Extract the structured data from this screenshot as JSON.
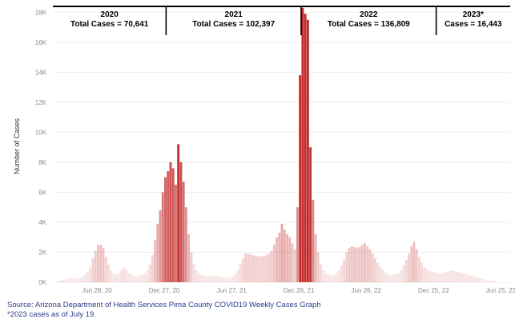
{
  "chart_data": {
    "type": "bar",
    "ylabel": "Number of Cases",
    "ylim": [
      0,
      18500
    ],
    "yticks": [
      0,
      2000,
      4000,
      6000,
      8000,
      10000,
      12000,
      14000,
      16000,
      18000
    ],
    "ytick_labels": [
      "0K",
      "2K",
      "4K",
      "6K",
      "8K",
      "10K",
      "12K",
      "14K",
      "16K",
      "18K"
    ],
    "x_start": "2020-03-01",
    "x_end": "2023-07-20",
    "xticks": [
      {
        "date": "2020-06-28",
        "label": "Jun 28, 20"
      },
      {
        "date": "2020-12-27",
        "label": "Dec 27, 20"
      },
      {
        "date": "2021-06-27",
        "label": "Jun 27, 21"
      },
      {
        "date": "2021-12-26",
        "label": "Dec 26, 21"
      },
      {
        "date": "2022-06-26",
        "label": "Jun 26, 22"
      },
      {
        "date": "2022-12-25",
        "label": "Dec 25, 22"
      },
      {
        "date": "2023-06-25",
        "label": "Jun 25, 23"
      }
    ],
    "year_panels": [
      {
        "year": "2020",
        "total": "Total Cases = 70,641",
        "start": "2020-03-01",
        "end": "2021-01-01"
      },
      {
        "year": "2021",
        "total": "Total Cases = 102,397",
        "start": "2021-01-01",
        "end": "2022-01-01"
      },
      {
        "year": "2022",
        "total": "Total Cases = 136,809",
        "start": "2022-01-01",
        "end": "2023-01-01"
      },
      {
        "year": "2023*",
        "total": "Cases = 16,443",
        "start": "2023-01-01",
        "end": "2023-07-20"
      }
    ],
    "series": [
      {
        "week_start": "2020-03-08",
        "interval_days": 7,
        "values": [
          50,
          100,
          150,
          200,
          250,
          300,
          300,
          250,
          250,
          300,
          400,
          500,
          700,
          1000,
          1600,
          2100,
          2500,
          2500,
          2300,
          1700,
          1200,
          800,
          600,
          500,
          600,
          800,
          1000,
          800,
          600,
          500,
          400,
          400,
          450,
          500,
          600,
          800,
          1200,
          1800,
          2800,
          3900,
          4800,
          6000,
          7000,
          7400,
          8000,
          7600,
          6500,
          9200,
          8000,
          6700,
          5000,
          3200,
          2000,
          1200,
          800,
          600,
          500,
          450,
          400,
          400,
          420,
          450,
          420,
          380,
          350,
          300,
          280,
          300,
          400,
          550,
          800,
          1200,
          1600,
          1900,
          1900,
          1850,
          1800,
          1750,
          1750,
          1700,
          1750,
          1800,
          1900,
          2100,
          2500,
          3000,
          3300,
          3900,
          3500,
          3200,
          3000,
          2600,
          2200,
          5000,
          13800,
          18300,
          17900,
          17500,
          9000,
          5500,
          3200,
          2000,
          1200,
          800,
          600,
          500,
          450,
          500,
          600,
          800,
          1100,
          1500,
          2000,
          2300,
          2400,
          2350,
          2300,
          2350,
          2500,
          2600,
          2400,
          2200,
          1900,
          1600,
          1300,
          1000,
          800,
          650,
          550,
          500,
          500,
          550,
          600,
          800,
          1100,
          1500,
          1900,
          2400,
          2700,
          2200,
          1700,
          1300,
          1000,
          850,
          750,
          700,
          650,
          600,
          600,
          600,
          650,
          700,
          750,
          800,
          750,
          700,
          650,
          600,
          550,
          500,
          450,
          400,
          350,
          300,
          250,
          200,
          150,
          120,
          100,
          80
        ]
      }
    ]
  },
  "source_lines": [
    "Source: Arizona Department of Health Services Pima County COVID19 Weekly Cases Graph",
    "*2023 cases as of July 19."
  ]
}
